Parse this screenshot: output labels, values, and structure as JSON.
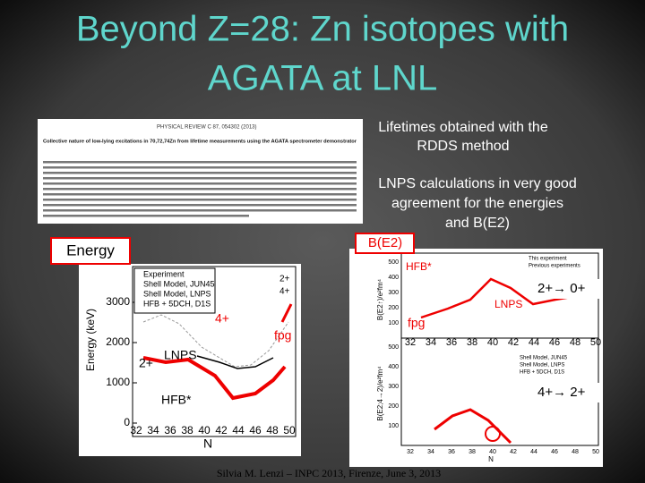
{
  "title": {
    "lines": [
      "Beyond Z=28: Zn isotopes with",
      "AGATA at LNL"
    ]
  },
  "paper": {
    "journal": "PHYSICAL REVIEW C 87, 054302 (2013)",
    "title": "Collective nature of low-lying excitations in 70,72,74Zn from lifetime measurements using the AGATA spectrometer demonstrator"
  },
  "notes": {
    "lifetimes": [
      "Lifetimes obtained with the",
      "RDDS method"
    ],
    "lnps": [
      "LNPS calculations in very good",
      "agreement for the energies",
      "and B(E2)"
    ]
  },
  "labels": {
    "energy": "Energy",
    "be2": "B(E2)"
  },
  "energy_plot": {
    "yticks": [
      "3000",
      "2000",
      "1000",
      "0"
    ],
    "xticks": [
      "32",
      "34",
      "36",
      "38",
      "40",
      "42",
      "44",
      "46",
      "48",
      "50"
    ],
    "xlabel": "N",
    "ylabel": "Energy (keV)",
    "legend": [
      "Experiment",
      "Shell Model, JUN45",
      "Shell Model, LNPS",
      "HFB + 5DCH, D1S"
    ],
    "states": [
      "2+",
      "4+"
    ],
    "annotations": {
      "four": "4+",
      "two": "2+",
      "lnps": "LNPS",
      "fpg": "fpg",
      "hfb": "HFB*"
    }
  },
  "be2_plot": {
    "yticks": [
      "500",
      "400",
      "300",
      "200",
      "100"
    ],
    "xticks": [
      "32",
      "34",
      "36",
      "38",
      "40",
      "42",
      "44",
      "46",
      "48",
      "50"
    ],
    "xlabel": "N",
    "ylabel_top": "B(E2↑)/e²fm⁴",
    "ylabel_bottom": "B(E2;4→2)/e²fm⁴",
    "legend": [
      "This experiment",
      "Previous experiments"
    ],
    "legend_bottom": [
      "Shell Model, JUN45",
      "Shell Model, LNPS",
      "HFB + 5DCH, D1S"
    ],
    "annotations": {
      "hfb": "HFB*",
      "t20": "2+→ 0+",
      "lnps": "LNPS",
      "fpg": "fpg",
      "t42": "4+→ 2+"
    }
  },
  "footer": "Silvia M. Lenzi – INPC 2013, Firenze, June 3, 2013"
}
